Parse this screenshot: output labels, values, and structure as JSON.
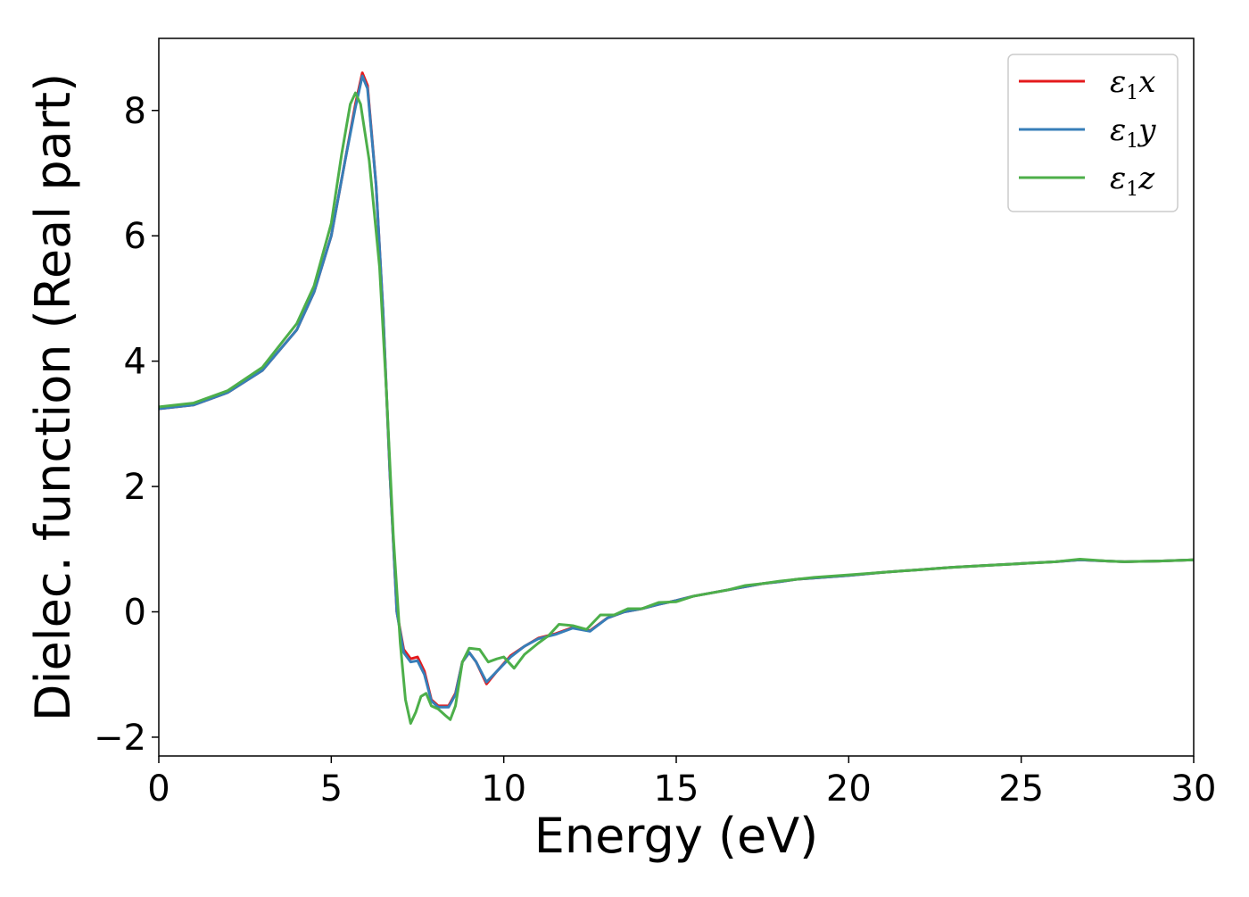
{
  "chart_data": {
    "type": "line",
    "title": "",
    "xlabel": "Energy (eV)",
    "ylabel": "Dielec. function (Real part)",
    "xlim": [
      0,
      30
    ],
    "ylim": [
      -2.3,
      9.15
    ],
    "xticks": [
      0,
      5,
      10,
      15,
      20,
      25,
      30
    ],
    "xtick_labels": [
      "0",
      "5",
      "10",
      "15",
      "20",
      "25",
      "30"
    ],
    "yticks": [
      -2,
      0,
      2,
      4,
      6,
      8
    ],
    "ytick_labels": [
      "−2",
      "0",
      "2",
      "4",
      "6",
      "8"
    ],
    "grid": false,
    "legend_position": "top-right",
    "series": [
      {
        "name": "ε1x",
        "legend_base": "ε",
        "legend_sub": "1",
        "legend_var": "x",
        "color": "#e41a1c",
        "points": [
          [
            0,
            3.24
          ],
          [
            1,
            3.3
          ],
          [
            2,
            3.5
          ],
          [
            3,
            3.85
          ],
          [
            4,
            4.5
          ],
          [
            4.5,
            5.1
          ],
          [
            5,
            6.0
          ],
          [
            5.4,
            7.2
          ],
          [
            5.7,
            8.1
          ],
          [
            5.9,
            8.6
          ],
          [
            6.05,
            8.4
          ],
          [
            6.3,
            6.8
          ],
          [
            6.5,
            4.8
          ],
          [
            6.7,
            2.2
          ],
          [
            6.9,
            0.0
          ],
          [
            7.1,
            -0.6
          ],
          [
            7.3,
            -0.75
          ],
          [
            7.5,
            -0.72
          ],
          [
            7.7,
            -0.95
          ],
          [
            7.9,
            -1.4
          ],
          [
            8.1,
            -1.5
          ],
          [
            8.4,
            -1.5
          ],
          [
            8.6,
            -1.3
          ],
          [
            8.8,
            -0.8
          ],
          [
            9.0,
            -0.65
          ],
          [
            9.2,
            -0.8
          ],
          [
            9.5,
            -1.15
          ],
          [
            9.8,
            -0.95
          ],
          [
            10.2,
            -0.7
          ],
          [
            10.6,
            -0.55
          ],
          [
            11.0,
            -0.42
          ],
          [
            11.5,
            -0.35
          ],
          [
            12.0,
            -0.25
          ],
          [
            12.5,
            -0.3
          ],
          [
            13.0,
            -0.1
          ],
          [
            13.5,
            0.0
          ],
          [
            14.0,
            0.05
          ],
          [
            14.5,
            0.12
          ],
          [
            15.0,
            0.18
          ],
          [
            15.5,
            0.25
          ],
          [
            16.0,
            0.3
          ],
          [
            16.5,
            0.35
          ],
          [
            17.0,
            0.4
          ],
          [
            17.5,
            0.45
          ],
          [
            18.0,
            0.48
          ],
          [
            18.5,
            0.52
          ],
          [
            19.0,
            0.54
          ],
          [
            20.0,
            0.58
          ],
          [
            21.0,
            0.63
          ],
          [
            22.0,
            0.67
          ],
          [
            23.0,
            0.71
          ],
          [
            24.0,
            0.74
          ],
          [
            25.0,
            0.77
          ],
          [
            26.0,
            0.8
          ],
          [
            26.7,
            0.83
          ],
          [
            27.5,
            0.81
          ],
          [
            28.0,
            0.8
          ],
          [
            29.0,
            0.81
          ],
          [
            30.0,
            0.83
          ]
        ]
      },
      {
        "name": "ε1y",
        "legend_base": "ε",
        "legend_sub": "1",
        "legend_var": "y",
        "color": "#377eb8",
        "points": [
          [
            0,
            3.24
          ],
          [
            1,
            3.3
          ],
          [
            2,
            3.5
          ],
          [
            3,
            3.85
          ],
          [
            4,
            4.5
          ],
          [
            4.5,
            5.1
          ],
          [
            5,
            6.0
          ],
          [
            5.4,
            7.2
          ],
          [
            5.7,
            8.05
          ],
          [
            5.9,
            8.55
          ],
          [
            6.05,
            8.35
          ],
          [
            6.3,
            6.8
          ],
          [
            6.5,
            4.8
          ],
          [
            6.7,
            2.2
          ],
          [
            6.9,
            0.0
          ],
          [
            7.1,
            -0.65
          ],
          [
            7.3,
            -0.8
          ],
          [
            7.5,
            -0.78
          ],
          [
            7.7,
            -1.0
          ],
          [
            7.9,
            -1.42
          ],
          [
            8.1,
            -1.52
          ],
          [
            8.4,
            -1.52
          ],
          [
            8.6,
            -1.32
          ],
          [
            8.8,
            -0.8
          ],
          [
            9.0,
            -0.65
          ],
          [
            9.2,
            -0.8
          ],
          [
            9.5,
            -1.12
          ],
          [
            9.8,
            -0.95
          ],
          [
            10.2,
            -0.72
          ],
          [
            10.6,
            -0.55
          ],
          [
            11.0,
            -0.43
          ],
          [
            11.5,
            -0.36
          ],
          [
            12.0,
            -0.26
          ],
          [
            12.5,
            -0.31
          ],
          [
            13.0,
            -0.1
          ],
          [
            13.5,
            0.0
          ],
          [
            14.0,
            0.05
          ],
          [
            14.5,
            0.12
          ],
          [
            15.0,
            0.18
          ],
          [
            15.5,
            0.25
          ],
          [
            16.0,
            0.3
          ],
          [
            16.5,
            0.35
          ],
          [
            17.0,
            0.4
          ],
          [
            17.5,
            0.45
          ],
          [
            18.0,
            0.48
          ],
          [
            18.5,
            0.52
          ],
          [
            19.0,
            0.54
          ],
          [
            20.0,
            0.58
          ],
          [
            21.0,
            0.63
          ],
          [
            22.0,
            0.67
          ],
          [
            23.0,
            0.71
          ],
          [
            24.0,
            0.74
          ],
          [
            25.0,
            0.77
          ],
          [
            26.0,
            0.8
          ],
          [
            26.7,
            0.83
          ],
          [
            27.5,
            0.81
          ],
          [
            28.0,
            0.8
          ],
          [
            29.0,
            0.81
          ],
          [
            30.0,
            0.83
          ]
        ]
      },
      {
        "name": "ε1z",
        "legend_base": "ε",
        "legend_sub": "1",
        "legend_var": "z",
        "color": "#4daf4a",
        "points": [
          [
            0,
            3.27
          ],
          [
            1,
            3.33
          ],
          [
            2,
            3.53
          ],
          [
            3,
            3.9
          ],
          [
            4,
            4.6
          ],
          [
            4.5,
            5.2
          ],
          [
            5,
            6.2
          ],
          [
            5.3,
            7.3
          ],
          [
            5.55,
            8.1
          ],
          [
            5.7,
            8.28
          ],
          [
            5.85,
            8.1
          ],
          [
            6.1,
            7.2
          ],
          [
            6.4,
            5.5
          ],
          [
            6.6,
            3.5
          ],
          [
            6.8,
            1.2
          ],
          [
            7.0,
            -0.5
          ],
          [
            7.15,
            -1.4
          ],
          [
            7.3,
            -1.78
          ],
          [
            7.45,
            -1.6
          ],
          [
            7.6,
            -1.35
          ],
          [
            7.75,
            -1.3
          ],
          [
            7.9,
            -1.5
          ],
          [
            8.1,
            -1.55
          ],
          [
            8.3,
            -1.65
          ],
          [
            8.45,
            -1.72
          ],
          [
            8.6,
            -1.5
          ],
          [
            8.8,
            -0.8
          ],
          [
            9.0,
            -0.58
          ],
          [
            9.3,
            -0.6
          ],
          [
            9.55,
            -0.8
          ],
          [
            9.8,
            -0.75
          ],
          [
            10.0,
            -0.72
          ],
          [
            10.3,
            -0.9
          ],
          [
            10.6,
            -0.68
          ],
          [
            11.0,
            -0.5
          ],
          [
            11.3,
            -0.38
          ],
          [
            11.6,
            -0.2
          ],
          [
            12.0,
            -0.22
          ],
          [
            12.4,
            -0.28
          ],
          [
            12.8,
            -0.05
          ],
          [
            13.2,
            -0.05
          ],
          [
            13.6,
            0.05
          ],
          [
            14.0,
            0.05
          ],
          [
            14.5,
            0.15
          ],
          [
            15.0,
            0.16
          ],
          [
            15.5,
            0.25
          ],
          [
            16.0,
            0.3
          ],
          [
            16.5,
            0.35
          ],
          [
            17.0,
            0.42
          ],
          [
            17.5,
            0.45
          ],
          [
            18.0,
            0.49
          ],
          [
            18.5,
            0.52
          ],
          [
            19.0,
            0.55
          ],
          [
            20.0,
            0.59
          ],
          [
            21.0,
            0.63
          ],
          [
            22.0,
            0.67
          ],
          [
            23.0,
            0.71
          ],
          [
            24.0,
            0.74
          ],
          [
            25.0,
            0.77
          ],
          [
            26.0,
            0.8
          ],
          [
            26.7,
            0.84
          ],
          [
            27.5,
            0.81
          ],
          [
            28.0,
            0.8
          ],
          [
            29.0,
            0.81
          ],
          [
            30.0,
            0.83
          ]
        ]
      }
    ]
  }
}
